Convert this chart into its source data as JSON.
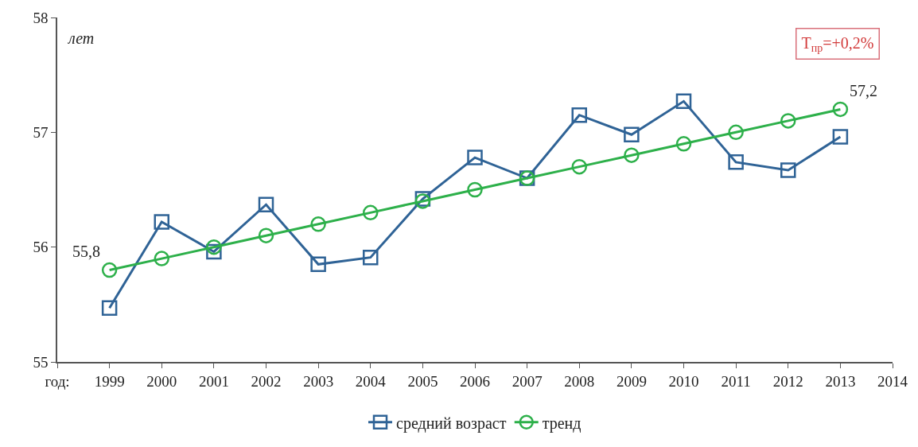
{
  "chart_data": {
    "type": "line",
    "x": [
      1999,
      2000,
      2001,
      2002,
      2003,
      2004,
      2005,
      2006,
      2007,
      2008,
      2009,
      2010,
      2011,
      2012,
      2013
    ],
    "series": [
      {
        "name": "средний возраст",
        "color": "#2f6396",
        "marker": "square",
        "values": [
          55.47,
          56.22,
          55.96,
          56.37,
          55.85,
          55.91,
          56.42,
          56.78,
          56.6,
          57.15,
          56.98,
          57.27,
          56.74,
          56.67,
          56.96
        ]
      },
      {
        "name": "тренд",
        "color": "#2db04a",
        "marker": "circle",
        "values": [
          55.8,
          55.9,
          56.0,
          56.1,
          56.2,
          56.3,
          56.4,
          56.5,
          56.6,
          56.7,
          56.8,
          56.9,
          57.0,
          57.1,
          57.2
        ],
        "value_labels": [
          "55,8",
          null,
          null,
          null,
          null,
          null,
          null,
          null,
          null,
          null,
          null,
          null,
          null,
          null,
          "57,2"
        ]
      }
    ],
    "xlim": [
      1998,
      2014
    ],
    "xticks": [
      {
        "value": 1998,
        "label": "год:"
      },
      1999,
      2000,
      2001,
      2002,
      2003,
      2004,
      2005,
      2006,
      2007,
      2008,
      2009,
      2010,
      2011,
      2012,
      2013,
      2014
    ],
    "ylim": [
      55,
      58
    ],
    "yticks": [
      55,
      56,
      57,
      58
    ],
    "annotations": [
      "лет",
      "T$_{пр}$=+0,2%"
    ],
    "grid": false,
    "legend": "bottom",
    "line_style": "solid"
  }
}
